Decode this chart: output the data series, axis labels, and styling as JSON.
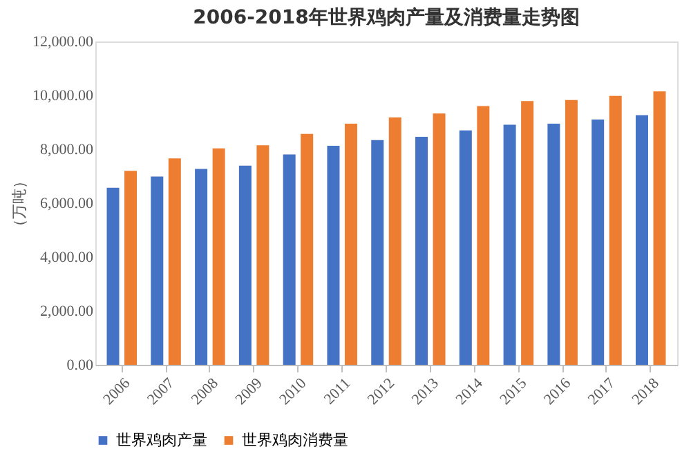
{
  "chart_data": {
    "type": "bar",
    "title": "2006-2018年世界鸡肉产量及消费量走势图",
    "ylabel": "（万吨）",
    "categories": [
      "2006",
      "2007",
      "2008",
      "2009",
      "2010",
      "2011",
      "2012",
      "2013",
      "2014",
      "2015",
      "2016",
      "2017",
      "2018"
    ],
    "series": [
      {
        "name": "世界鸡肉产量",
        "color": "#4472c4",
        "values": [
          6570,
          6990,
          7270,
          7390,
          7810,
          8130,
          8340,
          8460,
          8700,
          8910,
          8950,
          9100,
          9260
        ]
      },
      {
        "name": "世界鸡肉消费量",
        "color": "#ed7d31",
        "values": [
          7200,
          7660,
          8030,
          8150,
          8570,
          8950,
          9180,
          9330,
          9600,
          9790,
          9830,
          9980,
          10150
        ]
      }
    ],
    "ylim": [
      0,
      12000
    ],
    "yticks": [
      {
        "value": 0,
        "label": "0.00"
      },
      {
        "value": 2000,
        "label": "2,000.00"
      },
      {
        "value": 4000,
        "label": "4,000.00"
      },
      {
        "value": 6000,
        "label": "6,000.00"
      },
      {
        "value": 8000,
        "label": "8,000.00"
      },
      {
        "value": 10000,
        "label": "10,000.00"
      },
      {
        "value": 12000,
        "label": "12,000.00"
      }
    ],
    "grid": false,
    "legend": "bottom"
  }
}
